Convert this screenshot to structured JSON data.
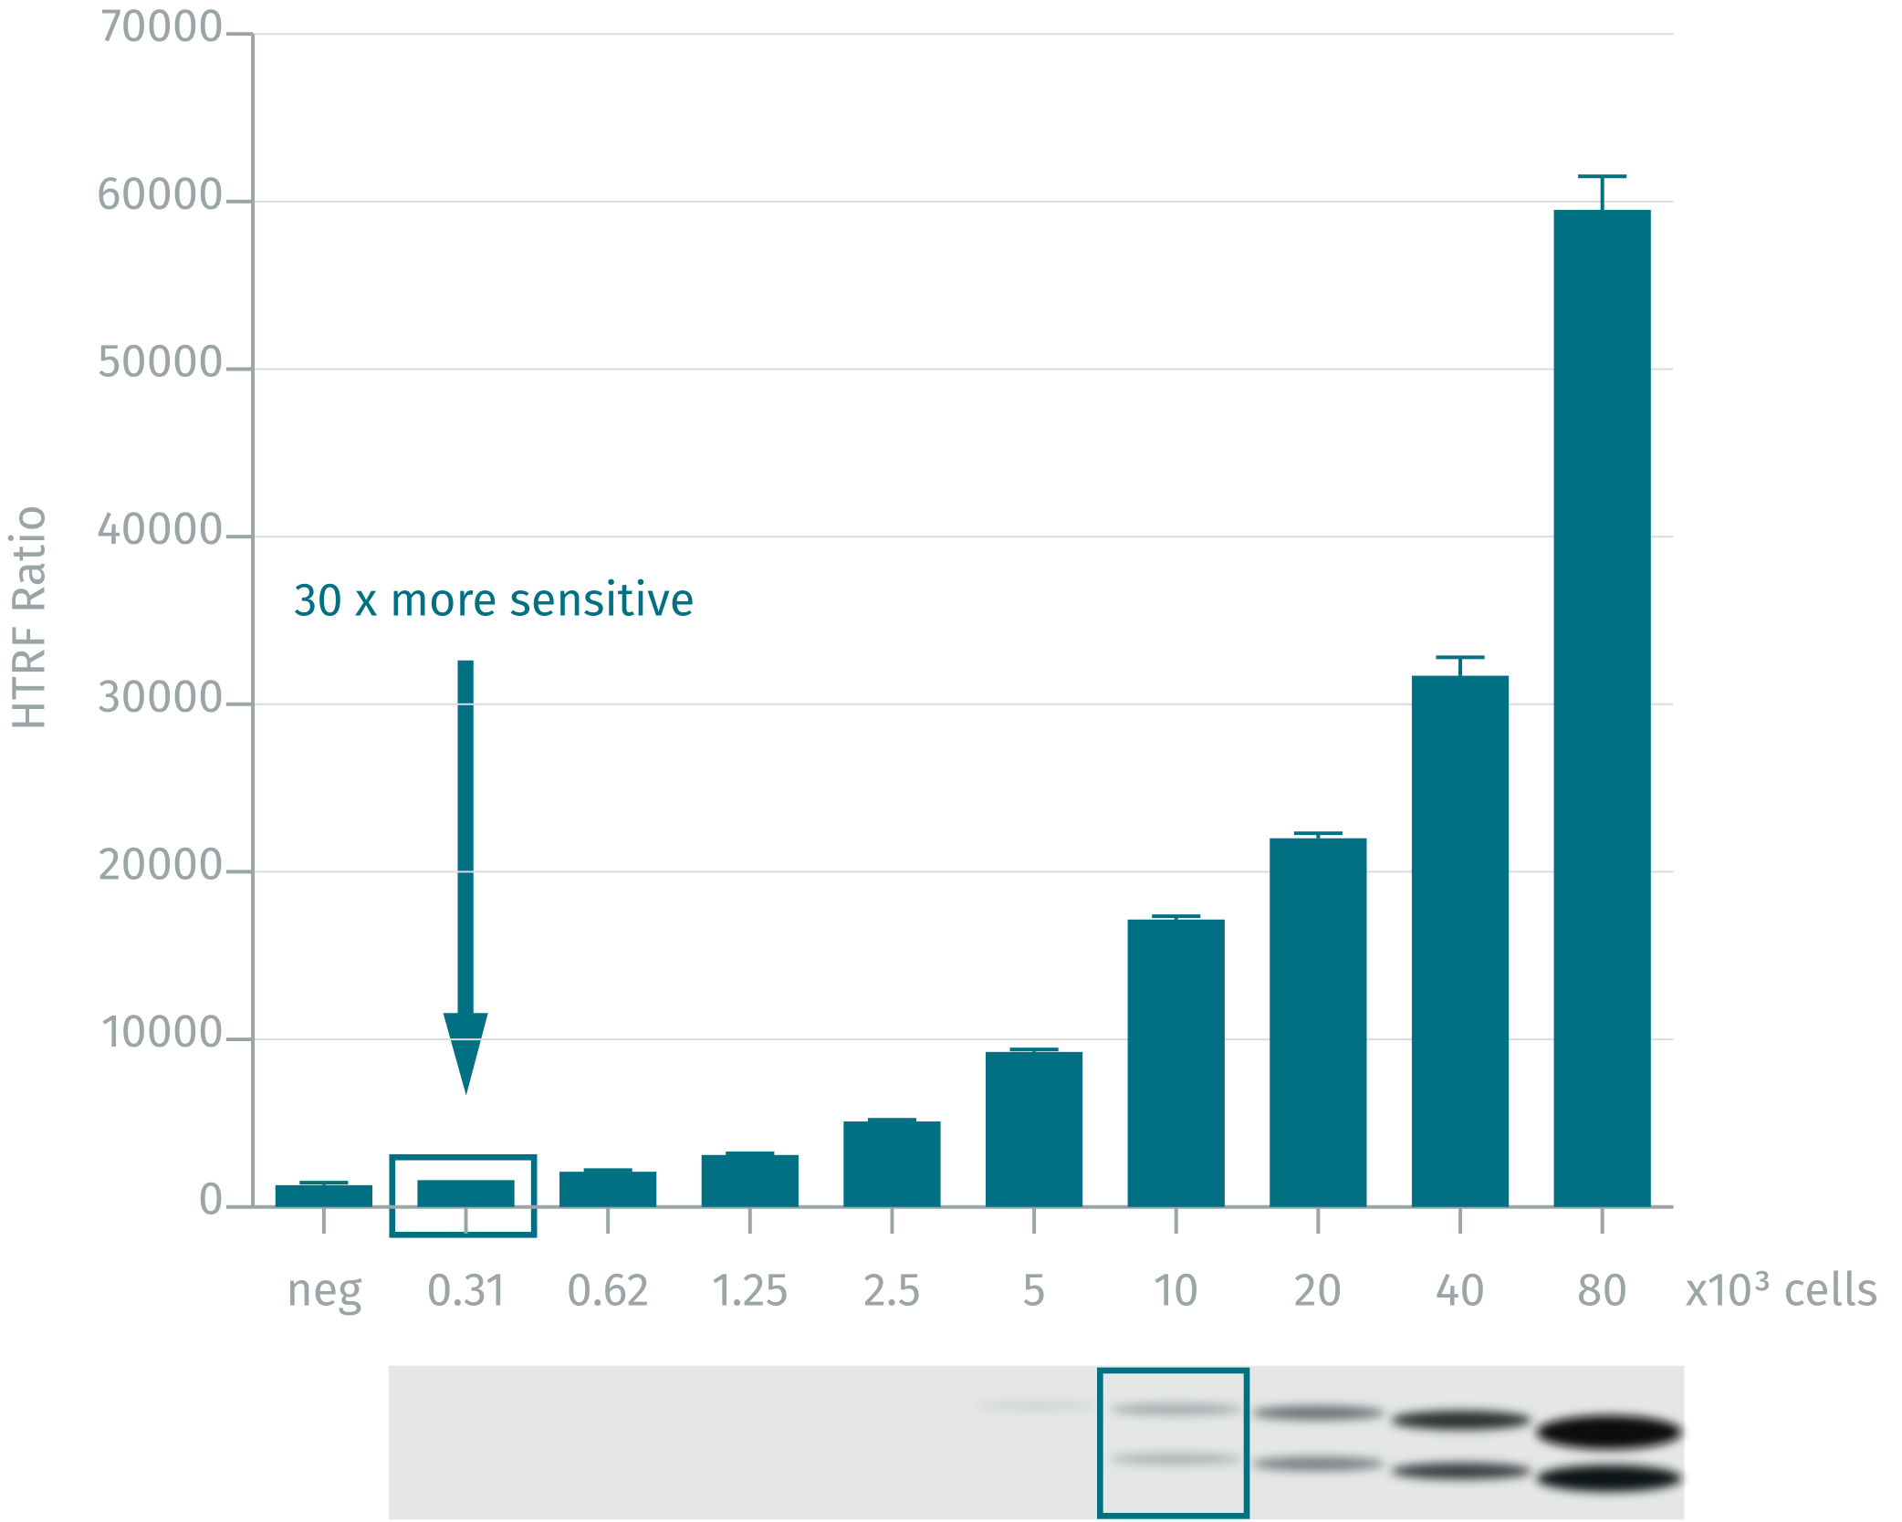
{
  "chart_data": {
    "type": "bar",
    "y_label": "HTRF Ratio",
    "x_label": "x10³ cells",
    "annotation": "30 x more sensitive",
    "categories": [
      "neg",
      "0.31",
      "0.62",
      "1.25",
      "2.5",
      "5",
      "10",
      "20",
      "40",
      "80"
    ],
    "values": [
      1300,
      1600,
      2100,
      3100,
      5100,
      9250,
      17150,
      22000,
      31700,
      59500
    ],
    "errors": [
      150,
      0,
      100,
      100,
      100,
      150,
      200,
      300,
      1100,
      2000
    ],
    "color": "#007082",
    "ylim": [
      0,
      70000
    ],
    "yticks": [
      0,
      10000,
      20000,
      30000,
      40000,
      50000,
      60000,
      70000
    ],
    "grid": true
  }
}
